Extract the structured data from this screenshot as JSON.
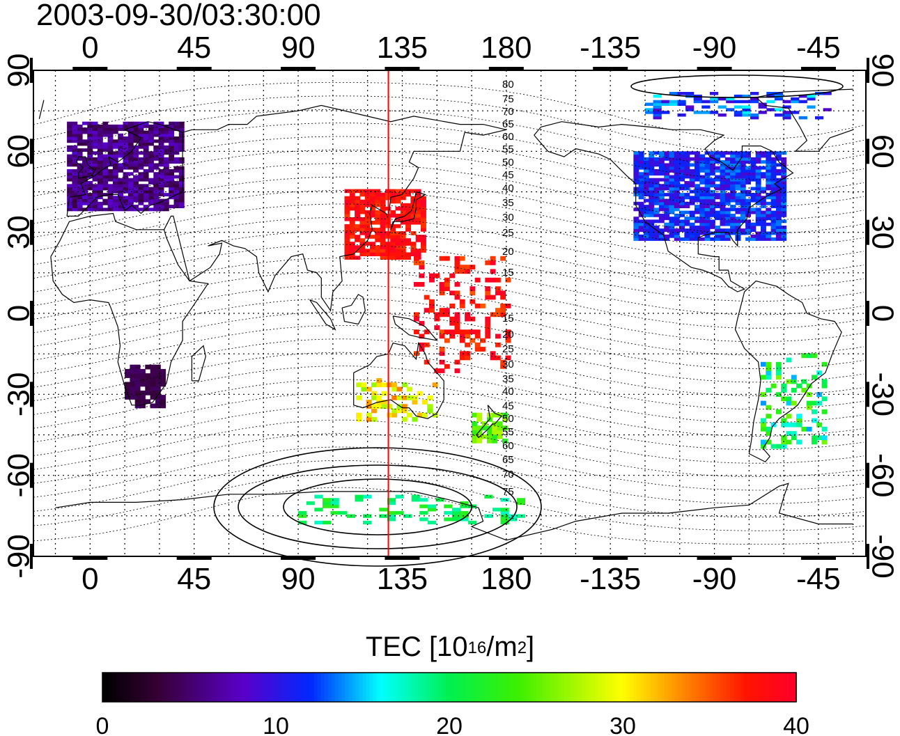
{
  "title": "2003-09-30/03:30:00",
  "axes": {
    "lon_ticks": [
      "0",
      "45",
      "90",
      "135",
      "180",
      "-135",
      "-90",
      "-45"
    ],
    "lat_ticks": [
      "90",
      "60",
      "30",
      "0",
      "-30",
      "-60",
      "-90"
    ]
  },
  "colorbar": {
    "label_main": "TEC  [10",
    "label_exp1": "16",
    "label_mid": "/m",
    "label_exp2": "2",
    "label_end": "]",
    "min": 0,
    "max": 40,
    "ticks": [
      "0",
      "10",
      "20",
      "30",
      "40"
    ],
    "colormap": "jet-like (black-purple-blue-cyan-green-yellow-red)"
  },
  "map": {
    "projection": "equirectangular, central meridian ~105E",
    "grid": "dotted 15 degree",
    "meridian_marker_lon": 129,
    "meridian_marker_color": "#ff0000",
    "magnetic_latitude_labels": [
      "80",
      "75",
      "70",
      "65",
      "60",
      "55",
      "50",
      "45",
      "40",
      "35",
      "30",
      "25",
      "20",
      "15",
      "15",
      "20",
      "25",
      "30",
      "35",
      "40",
      "45",
      "50",
      "55",
      "60",
      "65",
      "70",
      "75"
    ],
    "tec_regions": [
      {
        "region": "Europe",
        "tec": 6
      },
      {
        "region": "North America",
        "tec": 11
      },
      {
        "region": "Japan / East Asia",
        "tec": 38
      },
      {
        "region": "Western Pacific",
        "tec": 38
      },
      {
        "region": "Southern Africa",
        "tec": 4
      },
      {
        "region": "Australia",
        "tec": 30
      },
      {
        "region": "New Zealand",
        "tec": 25
      },
      {
        "region": "South America",
        "tec": 20
      },
      {
        "region": "Antarctica",
        "tec": 20
      },
      {
        "region": "Arctic",
        "tec": 12
      }
    ]
  }
}
